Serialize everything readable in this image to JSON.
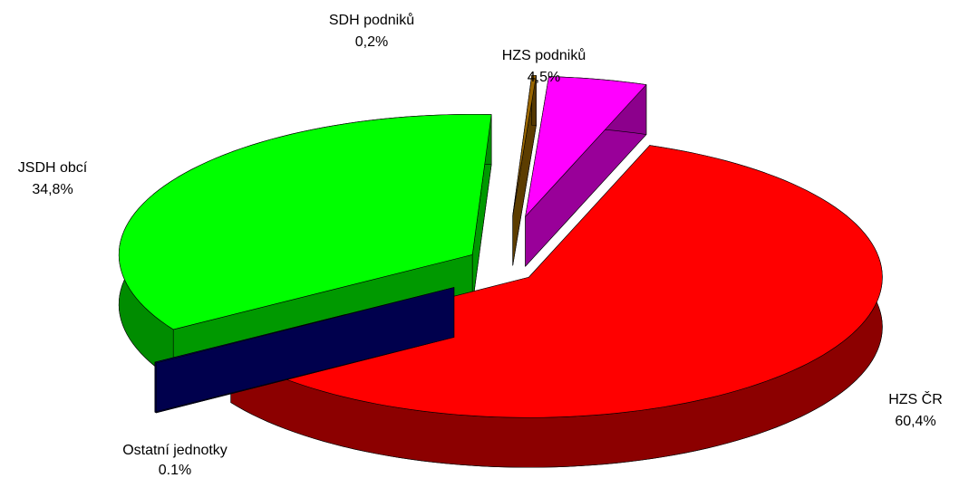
{
  "chart_data": {
    "type": "pie3d",
    "categories": [
      "HZS ČR",
      "Ostatní jednotky",
      "JSDH obcí",
      "SDH podniků",
      "HZS podniků"
    ],
    "values": [
      60.4,
      0.1,
      34.8,
      0.2,
      4.5
    ],
    "value_labels": [
      "60,4%",
      "0.1%",
      "34,8%",
      "0,2%",
      "4,5%"
    ],
    "colors": [
      "#ff0000",
      "#000080",
      "#00ff00",
      "#996600",
      "#ff00ff"
    ]
  }
}
